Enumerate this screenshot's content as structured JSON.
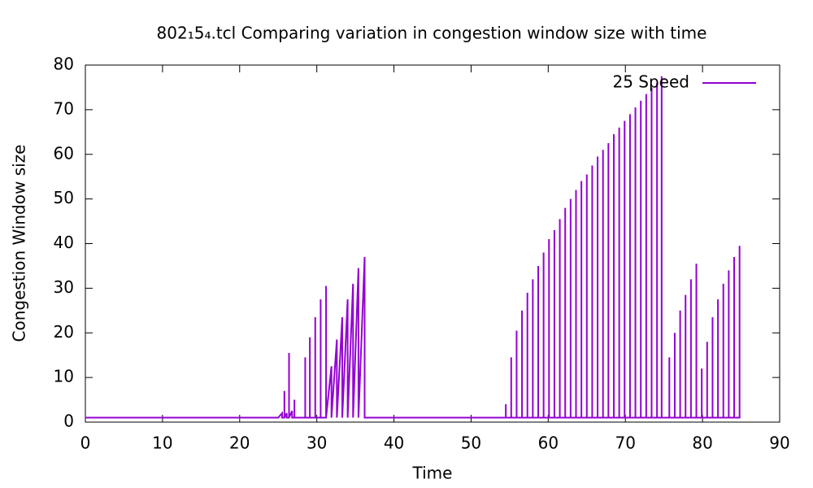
{
  "chart_data": {
    "type": "line",
    "title": "802₁5₄.tcl Comparing variation in congestion window size with time",
    "xlabel": "Time",
    "ylabel": "Congestion Window size",
    "xlim": [
      0,
      90
    ],
    "xticks": [
      0,
      10,
      20,
      30,
      40,
      50,
      60,
      70,
      80,
      90
    ],
    "ylim": [
      0,
      80
    ],
    "yticks": [
      0,
      10,
      20,
      30,
      40,
      50,
      60,
      70,
      80
    ],
    "legend": "top right",
    "x": [
      0,
      25,
      25.5,
      25.5,
      25.8,
      25.8,
      25.8,
      26.1,
      26.1,
      26.4,
      26.4,
      26.4,
      26.8,
      26.8,
      27.1,
      27.1,
      27.1,
      28.5,
      28.5,
      28.5,
      29.1,
      29.1,
      29.1,
      29.8,
      29.8,
      29.8,
      30.5,
      30.5,
      30.5,
      31.2,
      31.2,
      31.2,
      31.9,
      31.9,
      32.6,
      32.6,
      33.3,
      33.3,
      34,
      34,
      34.7,
      34.7,
      35.4,
      35.4,
      36.2,
      36.2,
      54.5,
      54.5,
      54.5,
      55.2,
      55.2,
      55.2,
      55.9,
      55.9,
      55.9,
      56.6,
      56.6,
      56.6,
      57.3,
      57.3,
      57.3,
      58,
      58,
      58,
      58.7,
      58.7,
      58.7,
      59.4,
      59.4,
      59.4,
      60.1,
      60.1,
      60.1,
      60.8,
      60.8,
      60.8,
      61.5,
      61.5,
      61.5,
      62.2,
      62.2,
      62.2,
      62.9,
      62.9,
      62.9,
      63.6,
      63.6,
      63.6,
      64.3,
      64.3,
      64.3,
      65,
      65,
      65,
      65.7,
      65.7,
      65.7,
      66.4,
      66.4,
      66.4,
      67.1,
      67.1,
      67.1,
      67.8,
      67.8,
      67.8,
      68.5,
      68.5,
      68.5,
      69.2,
      69.2,
      69.2,
      69.9,
      69.9,
      69.9,
      70.6,
      70.6,
      70.6,
      71.3,
      71.3,
      71.3,
      72,
      72,
      72,
      72.7,
      72.7,
      72.7,
      73.4,
      73.4,
      73.4,
      74.1,
      74.1,
      74.1,
      74.7,
      74.7,
      74.7,
      75.7,
      75.7,
      75.7,
      76.4,
      76.4,
      76.4,
      77.1,
      77.1,
      77.1,
      77.8,
      77.8,
      77.8,
      78.5,
      78.5,
      78.5,
      79.2,
      79.2,
      79.2,
      79.9,
      79.9,
      79.9,
      80.6,
      80.6,
      80.6,
      81.3,
      81.3,
      81.3,
      82,
      82,
      82,
      82.7,
      82.7,
      82.7,
      83.4,
      83.4,
      83.4,
      84.1,
      84.1,
      84.1,
      84.8,
      84.8,
      84.8
    ],
    "series": [
      {
        "name": "25 Speed",
        "color": "#9400d3",
        "values": [
          1,
          1,
          2,
          1,
          1,
          7,
          1,
          2,
          1,
          1,
          15.5,
          1,
          2.5,
          1,
          1,
          5,
          1,
          1,
          14.5,
          1,
          1,
          19,
          1,
          1,
          23.5,
          1,
          1,
          27.5,
          1,
          1,
          30.5,
          1,
          12.5,
          1,
          18.5,
          1,
          23.5,
          1,
          27.5,
          1,
          31,
          1,
          34.5,
          1,
          37,
          1,
          1,
          4,
          1,
          1,
          14.5,
          1,
          1,
          20.5,
          1,
          1,
          25,
          1,
          1,
          29,
          1,
          1,
          32,
          1,
          1,
          35,
          1,
          1,
          38,
          1,
          1,
          41,
          1,
          1,
          43,
          1,
          1,
          45.5,
          1,
          1,
          48,
          1,
          1,
          50,
          1,
          1,
          52,
          1,
          1,
          54,
          1,
          1,
          55.5,
          1,
          1,
          57.5,
          1,
          1,
          59.5,
          1,
          1,
          61,
          1,
          1,
          62.5,
          1,
          1,
          64.5,
          1,
          1,
          66,
          1,
          1,
          67.5,
          1,
          1,
          69,
          1,
          1,
          70.5,
          1,
          1,
          72,
          1,
          1,
          73.5,
          1,
          1,
          75,
          1,
          1,
          76,
          1,
          1,
          77.5,
          1,
          1,
          14.5,
          1,
          1,
          20,
          1,
          1,
          25,
          1,
          1,
          28.5,
          1,
          1,
          32,
          1,
          1,
          35.5,
          1,
          1,
          12,
          1,
          1,
          18,
          1,
          1,
          23.5,
          1,
          1,
          27.5,
          1,
          1,
          31,
          1,
          1,
          34,
          1,
          1,
          37,
          1,
          1,
          39.5,
          1
        ]
      }
    ]
  }
}
